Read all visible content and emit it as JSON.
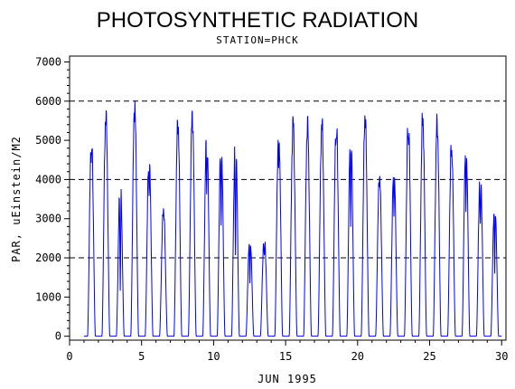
{
  "chart_data": {
    "type": "line",
    "title": "PHOTOSYNTHETIC RADIATION",
    "subtitle": "STATION=PHCK",
    "xlabel": "JUN 1995",
    "ylabel": "PAR, uEinstein/M2",
    "xlim": [
      0,
      30.3
    ],
    "ylim": [
      -100,
      7150
    ],
    "x_ticks": [
      0,
      5,
      10,
      15,
      20,
      25,
      30
    ],
    "y_ticks": [
      0,
      1000,
      2000,
      3000,
      4000,
      5000,
      6000,
      7000
    ],
    "reference_lines": [
      2000,
      4000,
      6000
    ],
    "line_color": "#0000ff",
    "series": [
      {
        "daily_peaks": [
          {
            "day": 1,
            "peak": 5150,
            "noon_dip": 4400
          },
          {
            "day": 2,
            "peak": 5650
          },
          {
            "day": 3,
            "peak": 4050,
            "noon_dip": 1000
          },
          {
            "day": 4,
            "peak": 5900
          },
          {
            "day": 5,
            "peak": 4650,
            "noon_dip": 3700
          },
          {
            "day": 6,
            "peak": 3250
          },
          {
            "day": 7,
            "peak": 5500
          },
          {
            "day": 8,
            "peak": 5650
          },
          {
            "day": 9,
            "peak": 5350,
            "noon_dip": 3600
          },
          {
            "day": 10,
            "peak": 5200,
            "noon_dip": 2700
          },
          {
            "day": 11,
            "peak": 5300,
            "noon_dip": 1800
          },
          {
            "day": 12,
            "peak": 2700,
            "noon_dip": 1300
          },
          {
            "day": 13,
            "peak": 2650,
            "noon_dip": 1900
          },
          {
            "day": 14,
            "peak": 5350,
            "noon_dip": 4200
          },
          {
            "day": 15,
            "peak": 5450
          },
          {
            "day": 16,
            "peak": 5400
          },
          {
            "day": 17,
            "peak": 5450
          },
          {
            "day": 18,
            "peak": 5550,
            "noon_dip": 4900
          },
          {
            "day": 19,
            "peak": 5400,
            "noon_dip": 2800
          },
          {
            "day": 20,
            "peak": 5650
          },
          {
            "day": 21,
            "peak": 4100
          },
          {
            "day": 22,
            "peak": 4400,
            "noon_dip": 3200
          },
          {
            "day": 23,
            "peak": 5600,
            "noon_dip": 4900
          },
          {
            "day": 24,
            "peak": 5600
          },
          {
            "day": 25,
            "peak": 5450
          },
          {
            "day": 26,
            "peak": 5000,
            "noon_dip": 4500
          },
          {
            "day": 27,
            "peak": 5150,
            "noon_dip": 3100
          },
          {
            "day": 28,
            "peak": 4350,
            "noon_dip": 2600
          },
          {
            "day": 29,
            "peak": 3650,
            "noon_dip": 1500
          }
        ]
      }
    ]
  }
}
